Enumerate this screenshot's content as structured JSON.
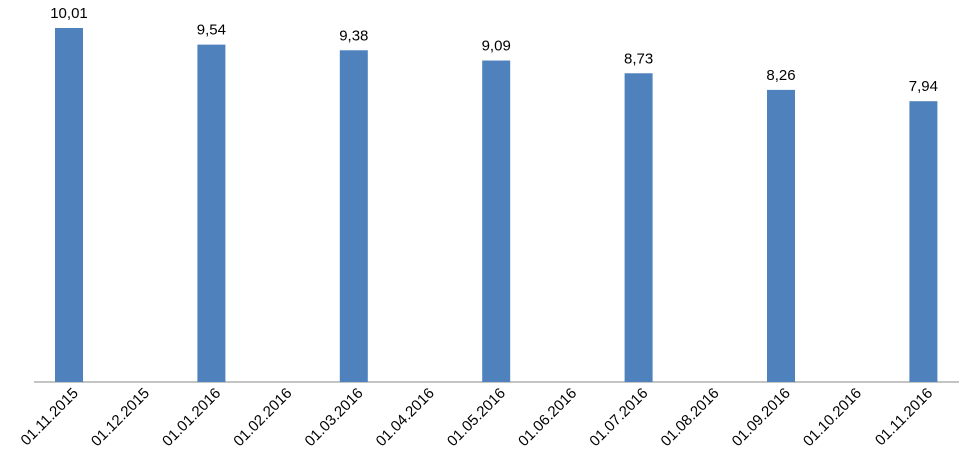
{
  "chart_data": {
    "type": "bar",
    "categories": [
      "01.11.2015",
      "01.12.2015",
      "01.01.2016",
      "01.02.2016",
      "01.03.2016",
      "01.04.2016",
      "01.05.2016",
      "01.06.2016",
      "01.07.2016",
      "01.08.2016",
      "01.09.2016",
      "01.10.2016",
      "01.11.2016"
    ],
    "values": [
      10.01,
      null,
      9.54,
      null,
      9.38,
      null,
      9.09,
      null,
      8.73,
      null,
      8.26,
      null,
      7.94
    ],
    "value_labels": [
      "10,01",
      null,
      "9,54",
      null,
      "9,38",
      null,
      "9,09",
      null,
      "8,73",
      null,
      "8,26",
      null,
      "7,94"
    ],
    "color": "#4f81bd"
  }
}
